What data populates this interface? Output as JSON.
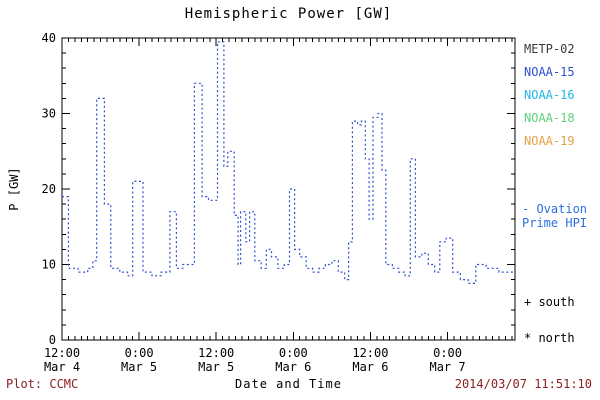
{
  "header": {
    "title": "Hemispheric Power [GW]"
  },
  "axes": {
    "ylabel": "P [GW]",
    "xlabel": "Date and Time"
  },
  "footer": {
    "plot_credit": "Plot: CCMC",
    "timestamp": "2014/03/07 11:51:10",
    "color": "#8b2121"
  },
  "legend": {
    "satellites": [
      {
        "label": "METP-02",
        "color": "#3a3a3a"
      },
      {
        "label": "NOAA-15",
        "color": "#2f4fd0"
      },
      {
        "label": "NOAA-16",
        "color": "#1fb7e8"
      },
      {
        "label": "NOAA-18",
        "color": "#5fd07a"
      },
      {
        "label": "NOAA-19",
        "color": "#e3a243"
      }
    ],
    "ovation_line1": "- Ovation",
    "ovation_line2": "Prime HPI",
    "ovation_color": "#2f6fe0",
    "south": "+ south",
    "north": "* north"
  },
  "chart_data": {
    "type": "line",
    "style": "dotted-step",
    "title": "Hemispheric Power [GW]",
    "xlabel": "Date and Time",
    "ylabel": "P [GW]",
    "legend_position": "right",
    "grid": false,
    "line_color": "#2f4fd0",
    "xlim": [
      0,
      70.5
    ],
    "ylim": [
      0,
      40
    ],
    "x_unit": "hours since Mar 4 12:00",
    "x_ticks": [
      {
        "t": 0,
        "time": "12:00",
        "date": "Mar 4"
      },
      {
        "t": 12,
        "time": "0:00",
        "date": "Mar 5"
      },
      {
        "t": 24,
        "time": "12:00",
        "date": "Mar 5"
      },
      {
        "t": 36,
        "time": "0:00",
        "date": "Mar 6"
      },
      {
        "t": 48,
        "time": "12:00",
        "date": "Mar 6"
      },
      {
        "t": 60,
        "time": "0:00",
        "date": "Mar 7"
      }
    ],
    "y_ticks": [
      0,
      10,
      20,
      30,
      40
    ],
    "y_minor_step": 2,
    "x_minor_step": 1,
    "steps": [
      [
        0,
        19
      ],
      [
        1,
        9.5
      ],
      [
        2.5,
        9
      ],
      [
        4,
        9.5
      ],
      [
        4.8,
        10.5
      ],
      [
        5.4,
        32
      ],
      [
        6.6,
        18
      ],
      [
        7.6,
        9.5
      ],
      [
        9,
        9
      ],
      [
        10.2,
        8.5
      ],
      [
        11,
        21
      ],
      [
        12.6,
        9
      ],
      [
        14,
        8.5
      ],
      [
        15.4,
        9
      ],
      [
        16.8,
        17
      ],
      [
        17.8,
        9.5
      ],
      [
        18.8,
        10
      ],
      [
        20.6,
        34
      ],
      [
        21.8,
        19
      ],
      [
        22.8,
        18.5
      ],
      [
        24.2,
        39.5
      ],
      [
        25.2,
        23
      ],
      [
        25.8,
        25
      ],
      [
        26.8,
        16.5
      ],
      [
        27.4,
        10
      ],
      [
        27.8,
        17
      ],
      [
        28.6,
        13
      ],
      [
        29.2,
        17
      ],
      [
        30,
        10.5
      ],
      [
        31,
        9.5
      ],
      [
        31.8,
        12
      ],
      [
        32.6,
        11
      ],
      [
        33.6,
        9.5
      ],
      [
        34.6,
        10
      ],
      [
        35.4,
        20
      ],
      [
        36.2,
        12
      ],
      [
        37,
        11
      ],
      [
        38,
        9.5
      ],
      [
        39,
        9
      ],
      [
        40,
        9.5
      ],
      [
        41,
        10
      ],
      [
        42,
        10.5
      ],
      [
        43,
        9
      ],
      [
        44,
        8
      ],
      [
        44.6,
        13
      ],
      [
        45.2,
        29
      ],
      [
        46,
        28.5
      ],
      [
        46.6,
        29
      ],
      [
        47.2,
        24
      ],
      [
        47.8,
        16
      ],
      [
        48.4,
        29.5
      ],
      [
        49.2,
        30
      ],
      [
        49.8,
        22.5
      ],
      [
        50.4,
        10
      ],
      [
        51.4,
        9.5
      ],
      [
        52.4,
        9
      ],
      [
        53.4,
        8.5
      ],
      [
        54.2,
        24
      ],
      [
        55,
        11
      ],
      [
        56,
        11.5
      ],
      [
        57,
        10
      ],
      [
        58,
        9
      ],
      [
        58.8,
        13
      ],
      [
        59.8,
        13.5
      ],
      [
        60.8,
        9
      ],
      [
        62,
        8
      ],
      [
        63.2,
        7.5
      ],
      [
        64.4,
        10
      ],
      [
        66,
        9.5
      ],
      [
        68,
        9
      ]
    ]
  }
}
